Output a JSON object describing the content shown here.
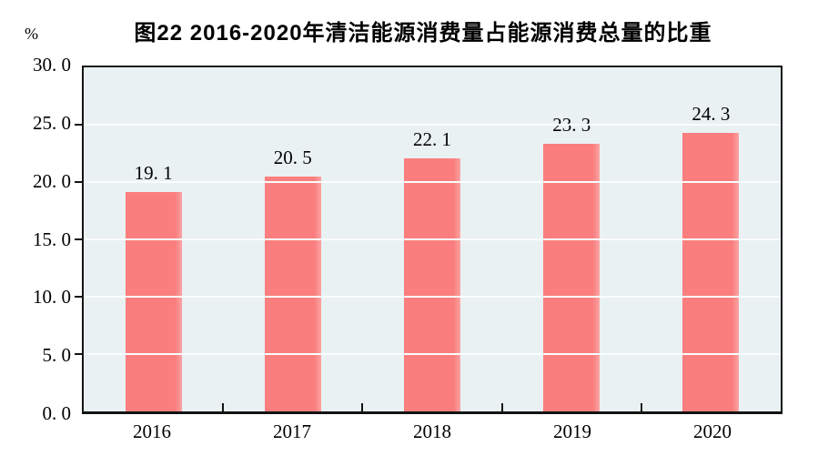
{
  "chart_data": {
    "type": "bar",
    "title": "图22  2016-2020年清洁能源消费量占能源消费总量的比重",
    "unit": "%",
    "categories": [
      "2016",
      "2017",
      "2018",
      "2019",
      "2020"
    ],
    "values": [
      19.1,
      20.5,
      22.1,
      23.3,
      24.3
    ],
    "value_labels": [
      "19. 1",
      "20. 5",
      "22. 1",
      "23. 3",
      "24. 3"
    ],
    "xlabel": "",
    "ylabel": "%",
    "ylim": [
      0,
      30
    ],
    "y_ticks": [
      0,
      5,
      10,
      15,
      20,
      25,
      30
    ],
    "y_tick_labels": [
      "0. 0",
      "5. 0",
      "10. 0",
      "15. 0",
      "20. 0",
      "25. 0",
      "30. 0"
    ],
    "grid": true,
    "legend_position": "none",
    "colors": {
      "bar": "#fa7e7e",
      "bar_edge_highlight": "#fca3a3",
      "plot_background": "#eaf1f2",
      "gridline": "#fafdfd",
      "axis": "#141414",
      "text": "#000000"
    }
  }
}
